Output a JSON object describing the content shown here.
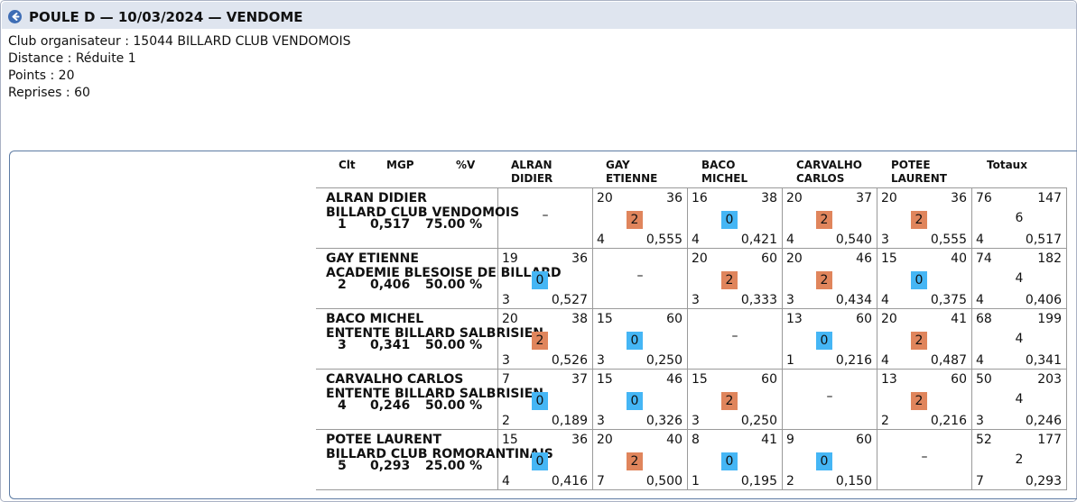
{
  "header": {
    "title": "POULE D — 10/03/2024 — VENDOME",
    "back_icon": "arrow-left-circle-icon"
  },
  "info": {
    "club": "Club organisateur : 15044 BILLARD CLUB VENDOMOIS",
    "distance": "Distance : Réduite 1",
    "points": "Points : 20",
    "reprises": "Reprises : 60"
  },
  "columns": {
    "clt": "Clt",
    "mgp": "MGP",
    "pv": "%V",
    "players": [
      {
        "line1": "ALRAN",
        "line2": "DIDIER"
      },
      {
        "line1": "GAY",
        "line2": "ETIENNE"
      },
      {
        "line1": "BACO",
        "line2": "MICHEL"
      },
      {
        "line1": "CARVALHO",
        "line2": "CARLOS"
      },
      {
        "line1": "POTEE",
        "line2": "LAURENT"
      }
    ],
    "totaux": "Totaux"
  },
  "colors": {
    "win": "#e0855c",
    "loss": "#45b6f5",
    "border": "#9a9a9a",
    "header_bg": "#dfe5ef"
  },
  "dash": "–",
  "rows": [
    {
      "name": "ALRAN DIDIER",
      "club": "BILLARD CLUB VENDOMOIS",
      "rank": "1",
      "mgp": "0,517",
      "pct": "75.00 %",
      "cells": [
        null,
        {
          "pts": "20",
          "rep": "36",
          "score": "2",
          "series": "4",
          "avg": "0,555"
        },
        {
          "pts": "16",
          "rep": "38",
          "score": "0",
          "series": "4",
          "avg": "0,421"
        },
        {
          "pts": "20",
          "rep": "37",
          "score": "2",
          "series": "4",
          "avg": "0,540"
        },
        {
          "pts": "20",
          "rep": "36",
          "score": "2",
          "series": "3",
          "avg": "0,555"
        }
      ],
      "total": {
        "pts": "76",
        "rep": "147",
        "score": "6",
        "series": "4",
        "avg": "0,517"
      }
    },
    {
      "name": "GAY ETIENNE",
      "club": "ACADEMIE BLESOISE DE BILLARD",
      "rank": "2",
      "mgp": "0,406",
      "pct": "50.00 %",
      "cells": [
        {
          "pts": "19",
          "rep": "36",
          "score": "0",
          "series": "3",
          "avg": "0,527"
        },
        null,
        {
          "pts": "20",
          "rep": "60",
          "score": "2",
          "series": "3",
          "avg": "0,333"
        },
        {
          "pts": "20",
          "rep": "46",
          "score": "2",
          "series": "3",
          "avg": "0,434"
        },
        {
          "pts": "15",
          "rep": "40",
          "score": "0",
          "series": "4",
          "avg": "0,375"
        }
      ],
      "total": {
        "pts": "74",
        "rep": "182",
        "score": "4",
        "series": "4",
        "avg": "0,406"
      }
    },
    {
      "name": "BACO MICHEL",
      "club": "ENTENTE BILLARD SALBRISIEN",
      "rank": "3",
      "mgp": "0,341",
      "pct": "50.00 %",
      "cells": [
        {
          "pts": "20",
          "rep": "38",
          "score": "2",
          "series": "3",
          "avg": "0,526"
        },
        {
          "pts": "15",
          "rep": "60",
          "score": "0",
          "series": "3",
          "avg": "0,250"
        },
        null,
        {
          "pts": "13",
          "rep": "60",
          "score": "0",
          "series": "1",
          "avg": "0,216"
        },
        {
          "pts": "20",
          "rep": "41",
          "score": "2",
          "series": "4",
          "avg": "0,487"
        }
      ],
      "total": {
        "pts": "68",
        "rep": "199",
        "score": "4",
        "series": "4",
        "avg": "0,341"
      }
    },
    {
      "name": "CARVALHO CARLOS",
      "club": "ENTENTE BILLARD SALBRISIEN",
      "rank": "4",
      "mgp": "0,246",
      "pct": "50.00 %",
      "cells": [
        {
          "pts": "7",
          "rep": "37",
          "score": "0",
          "series": "2",
          "avg": "0,189"
        },
        {
          "pts": "15",
          "rep": "46",
          "score": "0",
          "series": "3",
          "avg": "0,326"
        },
        {
          "pts": "15",
          "rep": "60",
          "score": "2",
          "series": "3",
          "avg": "0,250"
        },
        null,
        {
          "pts": "13",
          "rep": "60",
          "score": "2",
          "series": "2",
          "avg": "0,216"
        }
      ],
      "total": {
        "pts": "50",
        "rep": "203",
        "score": "4",
        "series": "3",
        "avg": "0,246"
      }
    },
    {
      "name": "POTEE LAURENT",
      "club": "BILLARD CLUB ROMORANTINAIS",
      "rank": "5",
      "mgp": "0,293",
      "pct": "25.00 %",
      "cells": [
        {
          "pts": "15",
          "rep": "36",
          "score": "0",
          "series": "4",
          "avg": "0,416"
        },
        {
          "pts": "20",
          "rep": "40",
          "score": "2",
          "series": "7",
          "avg": "0,500"
        },
        {
          "pts": "8",
          "rep": "41",
          "score": "0",
          "series": "1",
          "avg": "0,195"
        },
        {
          "pts": "9",
          "rep": "60",
          "score": "0",
          "series": "2",
          "avg": "0,150"
        },
        null
      ],
      "total": {
        "pts": "52",
        "rep": "177",
        "score": "2",
        "series": "7",
        "avg": "0,293"
      }
    }
  ]
}
